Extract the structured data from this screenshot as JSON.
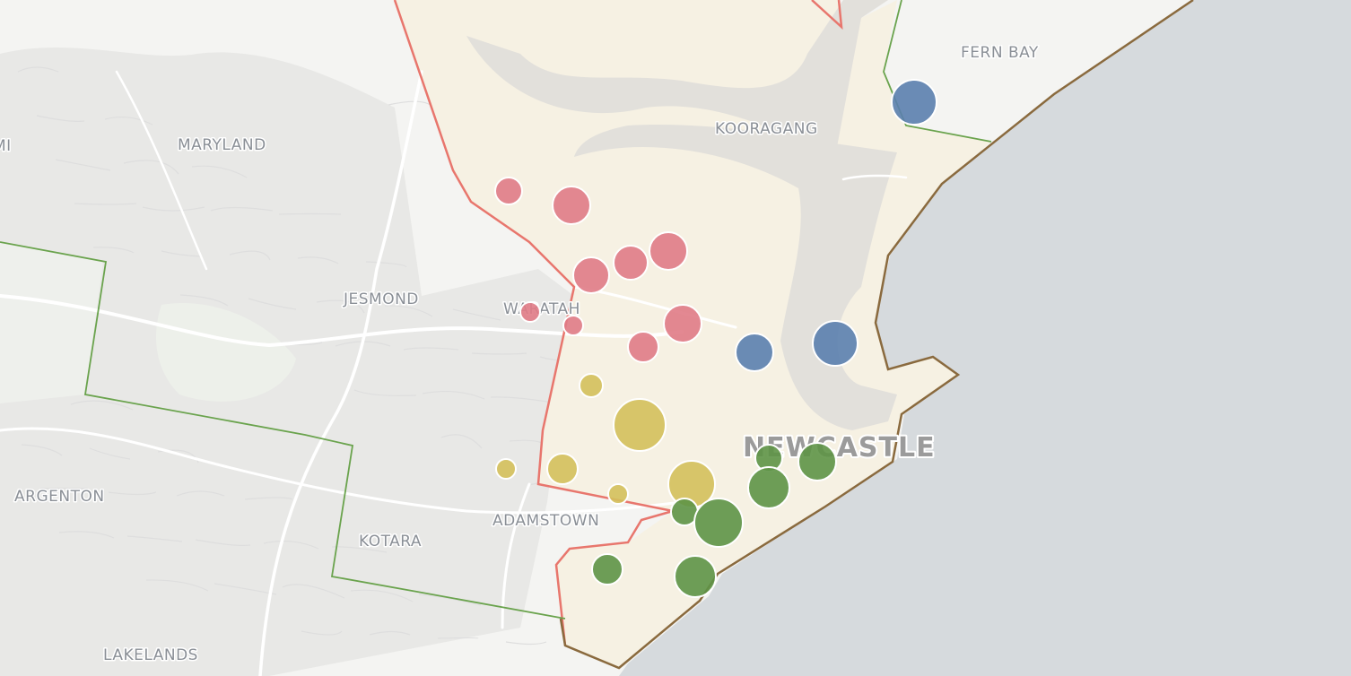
{
  "map": {
    "colors": {
      "land": "#f4f4f2",
      "water": "#d6dadd",
      "urban": "#e8e8e6",
      "lga_fill": "#f6f1e3",
      "estuary": "#e2e0db",
      "boundary_red": "#e8766d",
      "boundary_green": "#6aa34d",
      "boundary_brown": "#8a6a3e"
    },
    "place_labels": [
      {
        "id": "mi",
        "text": "MI"
      },
      {
        "id": "maryland",
        "text": "MARYLAND"
      },
      {
        "id": "fern-bay",
        "text": "FERN BAY"
      },
      {
        "id": "kooragang",
        "text": "KOORAGANG"
      },
      {
        "id": "jesmond",
        "text": "JESMOND"
      },
      {
        "id": "waratah",
        "text": "WARATAH"
      },
      {
        "id": "argenton",
        "text": "ARGENTON"
      },
      {
        "id": "adamstown",
        "text": "ADAMSTOWN"
      },
      {
        "id": "kotara",
        "text": "KOTARA"
      },
      {
        "id": "lakelands",
        "text": "LAKELANDS"
      }
    ],
    "city_label": "NEWCASTLE",
    "marker_groups": [
      {
        "color": "#e07b86",
        "markers": [
          {
            "id": "red-1",
            "size": 15
          },
          {
            "id": "red-2",
            "size": 21
          },
          {
            "id": "red-3",
            "size": 20
          },
          {
            "id": "red-4",
            "size": 19
          },
          {
            "id": "red-5",
            "size": 21
          },
          {
            "id": "red-6",
            "size": 11
          },
          {
            "id": "red-7",
            "size": 11
          },
          {
            "id": "red-8",
            "size": 21
          },
          {
            "id": "red-9",
            "size": 17
          }
        ]
      },
      {
        "color": "#5b7fae",
        "markers": [
          {
            "id": "blue-1",
            "size": 25
          },
          {
            "id": "blue-2",
            "size": 21
          },
          {
            "id": "blue-3",
            "size": 25
          }
        ]
      },
      {
        "color": "#d4c05b",
        "markers": [
          {
            "id": "yellow-1",
            "size": 13
          },
          {
            "id": "yellow-2",
            "size": 29
          },
          {
            "id": "yellow-3",
            "size": 11
          },
          {
            "id": "yellow-4",
            "size": 17
          },
          {
            "id": "yellow-5",
            "size": 11
          },
          {
            "id": "yellow-6",
            "size": 26
          }
        ]
      },
      {
        "color": "#5e9446",
        "markers": [
          {
            "id": "green-1",
            "size": 15
          },
          {
            "id": "green-2",
            "size": 21
          },
          {
            "id": "green-3",
            "size": 23
          },
          {
            "id": "green-4",
            "size": 15
          },
          {
            "id": "green-5",
            "size": 27
          },
          {
            "id": "green-6",
            "size": 17
          },
          {
            "id": "green-7",
            "size": 23
          }
        ]
      }
    ]
  }
}
